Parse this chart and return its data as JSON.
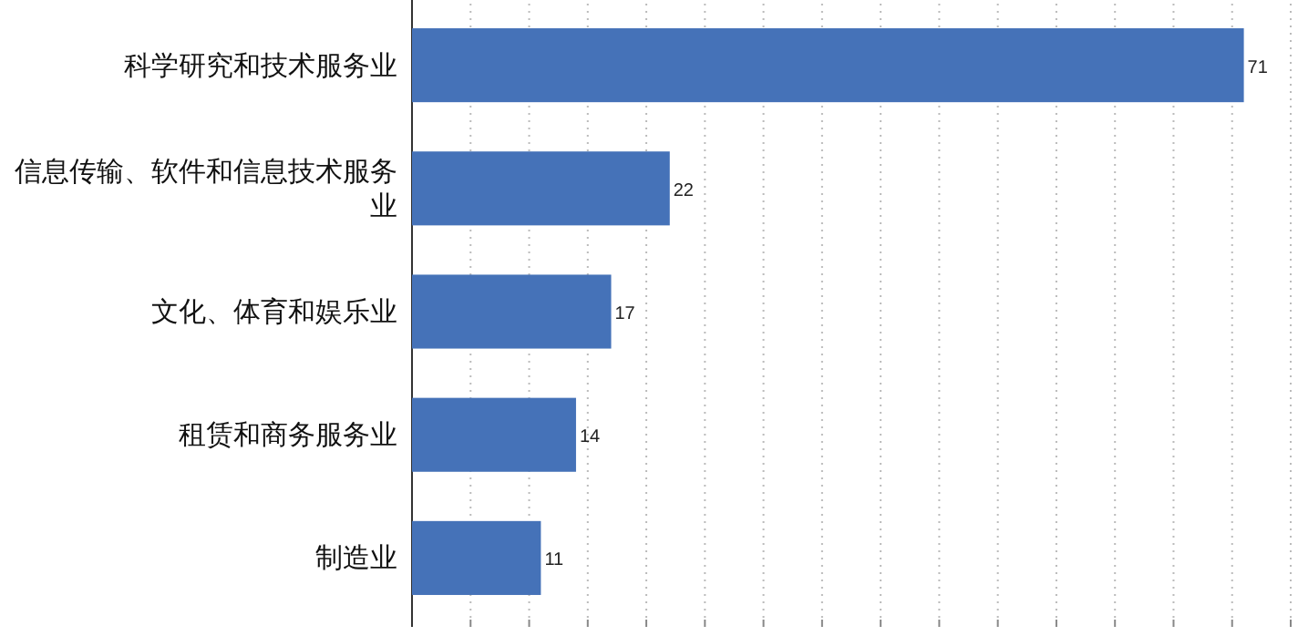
{
  "chart_data": {
    "type": "bar",
    "orientation": "horizontal",
    "categories": [
      "科学研究和技术服务业",
      "信息传输、软件和信息技术服务业",
      "文化、体育和娱乐业",
      "租赁和商务服务业",
      "制造业"
    ],
    "values": [
      71,
      22,
      17,
      14,
      11
    ],
    "color": "#4572b8",
    "data_labels": true,
    "xlim": [
      0,
      75
    ],
    "xticks": [
      {
        "value": 0,
        "label": null
      },
      {
        "value": 5,
        "label": null
      },
      {
        "value": 10,
        "label": null
      },
      {
        "value": 15,
        "label": null
      },
      {
        "value": 20,
        "label": null
      },
      {
        "value": 25,
        "label": null
      },
      {
        "value": 30,
        "label": null
      },
      {
        "value": 35,
        "label": null
      },
      {
        "value": 40,
        "label": null
      },
      {
        "value": 45,
        "label": null
      },
      {
        "value": 50,
        "label": null
      },
      {
        "value": 55,
        "label": null
      },
      {
        "value": 60,
        "label": null
      },
      {
        "value": 65,
        "label": null
      },
      {
        "value": 70,
        "label": null
      },
      {
        "value": 75,
        "label": null
      }
    ],
    "tick_labels": "y",
    "grid": "x"
  }
}
